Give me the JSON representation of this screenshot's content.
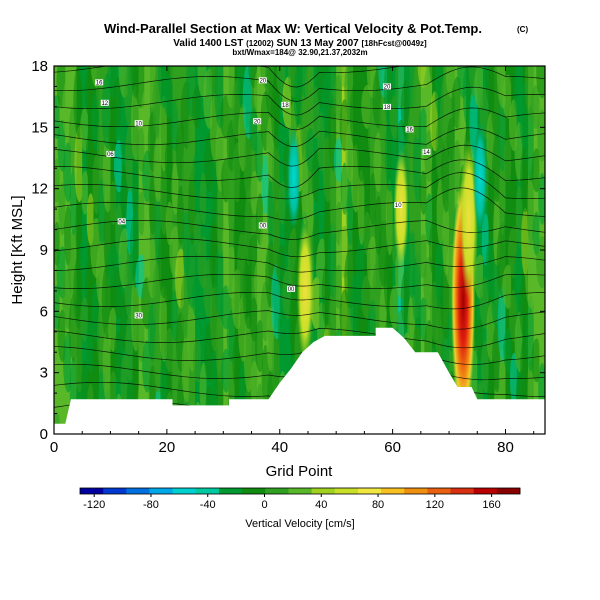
{
  "header": {
    "title": "Wind-Parallel Section at Max W: Vertical Velocity & Pot.Temp.",
    "copyright": "(C)",
    "valid_line": "Valid 1400 LST",
    "run": "(12002)",
    "date": "SUN 13 May 2007",
    "forecast": "[18hFcst@0049z]",
    "subtitle": "bxt/Wmax=184@ 32.90,21.37,2032m"
  },
  "chart_data": {
    "type": "heatmap",
    "xlabel": "Grid Point",
    "ylabel": "Height [Kft MSL]",
    "xlim": [
      0,
      87
    ],
    "ylim": [
      0,
      18
    ],
    "xticks": [
      0,
      20,
      40,
      60,
      80
    ],
    "yticks": [
      0,
      3,
      6,
      9,
      12,
      15,
      18
    ],
    "terrain_kft": [
      [
        0,
        0.5
      ],
      [
        2,
        0.5
      ],
      [
        3,
        1.7
      ],
      [
        21,
        1.7
      ],
      [
        21,
        1.4
      ],
      [
        31,
        1.4
      ],
      [
        31,
        1.7
      ],
      [
        38,
        1.7
      ],
      [
        40,
        2.5
      ],
      [
        42,
        3.2
      ],
      [
        44,
        4.0
      ],
      [
        46,
        4.5
      ],
      [
        48,
        4.8
      ],
      [
        57,
        4.8
      ],
      [
        57,
        5.2
      ],
      [
        60,
        5.2
      ],
      [
        62,
        4.7
      ],
      [
        64,
        4.0
      ],
      [
        68,
        4.0
      ],
      [
        70,
        3.0
      ],
      [
        71.5,
        2.3
      ],
      [
        74,
        2.3
      ],
      [
        75,
        1.7
      ],
      [
        87,
        1.7
      ]
    ],
    "velocity_features": [
      {
        "kind": "updraft",
        "x": 72.5,
        "z_kft": 6.5,
        "w_cms": 180
      },
      {
        "kind": "updraft",
        "x": 73.5,
        "z_kft": 10.5,
        "w_cms": 90
      },
      {
        "kind": "downdraft",
        "x": 75.5,
        "z_kft": 12.5,
        "w_cms": -40
      },
      {
        "kind": "downdraft",
        "x": 42.5,
        "z_kft": 12.5,
        "w_cms": -30
      },
      {
        "kind": "updraft",
        "x": 44.5,
        "z_kft": 7.0,
        "w_cms": 70
      },
      {
        "kind": "updraft",
        "x": 61.5,
        "z_kft": 11.0,
        "w_cms": 45
      }
    ],
    "isentrope_labels": [
      {
        "x": 8,
        "z_kft": 17.2,
        "text": "16"
      },
      {
        "x": 9,
        "z_kft": 16.2,
        "text": "12"
      },
      {
        "x": 15,
        "z_kft": 15.2,
        "text": "10"
      },
      {
        "x": 10,
        "z_kft": 13.7,
        "text": "06"
      },
      {
        "x": 12,
        "z_kft": 10.4,
        "text": "04"
      },
      {
        "x": 37,
        "z_kft": 10.2,
        "text": "00"
      },
      {
        "x": 36,
        "z_kft": 15.3,
        "text": "20"
      },
      {
        "x": 41,
        "z_kft": 16.1,
        "text": "18"
      },
      {
        "x": 37,
        "z_kft": 17.3,
        "text": "20"
      },
      {
        "x": 59,
        "z_kft": 16.0,
        "text": "18"
      },
      {
        "x": 63,
        "z_kft": 14.9,
        "text": "16"
      },
      {
        "x": 66,
        "z_kft": 13.8,
        "text": "14"
      },
      {
        "x": 61,
        "z_kft": 11.2,
        "text": "10"
      },
      {
        "x": 59,
        "z_kft": 17.0,
        "text": "20"
      },
      {
        "x": 42,
        "z_kft": 7.1,
        "text": "00"
      },
      {
        "x": 15,
        "z_kft": 5.8,
        "text": "30"
      }
    ]
  },
  "colorbar": {
    "label": "Vertical Velocity [cm/s]",
    "ticks": [
      "-120",
      "-80",
      "-40",
      "0",
      "40",
      "80",
      "120",
      "160"
    ],
    "tick_values": [
      -120,
      -80,
      -40,
      0,
      40,
      80,
      120,
      160
    ],
    "range": [
      -130,
      180
    ],
    "colors": [
      "#0000a0",
      "#0038d0",
      "#0070e0",
      "#00a8e8",
      "#00d0d0",
      "#00c8a0",
      "#009a30",
      "#108c10",
      "#30a020",
      "#58b828",
      "#a0d020",
      "#c8e028",
      "#f0e840",
      "#f8c020",
      "#f09010",
      "#e86010",
      "#d83010",
      "#b80000",
      "#880000"
    ]
  }
}
